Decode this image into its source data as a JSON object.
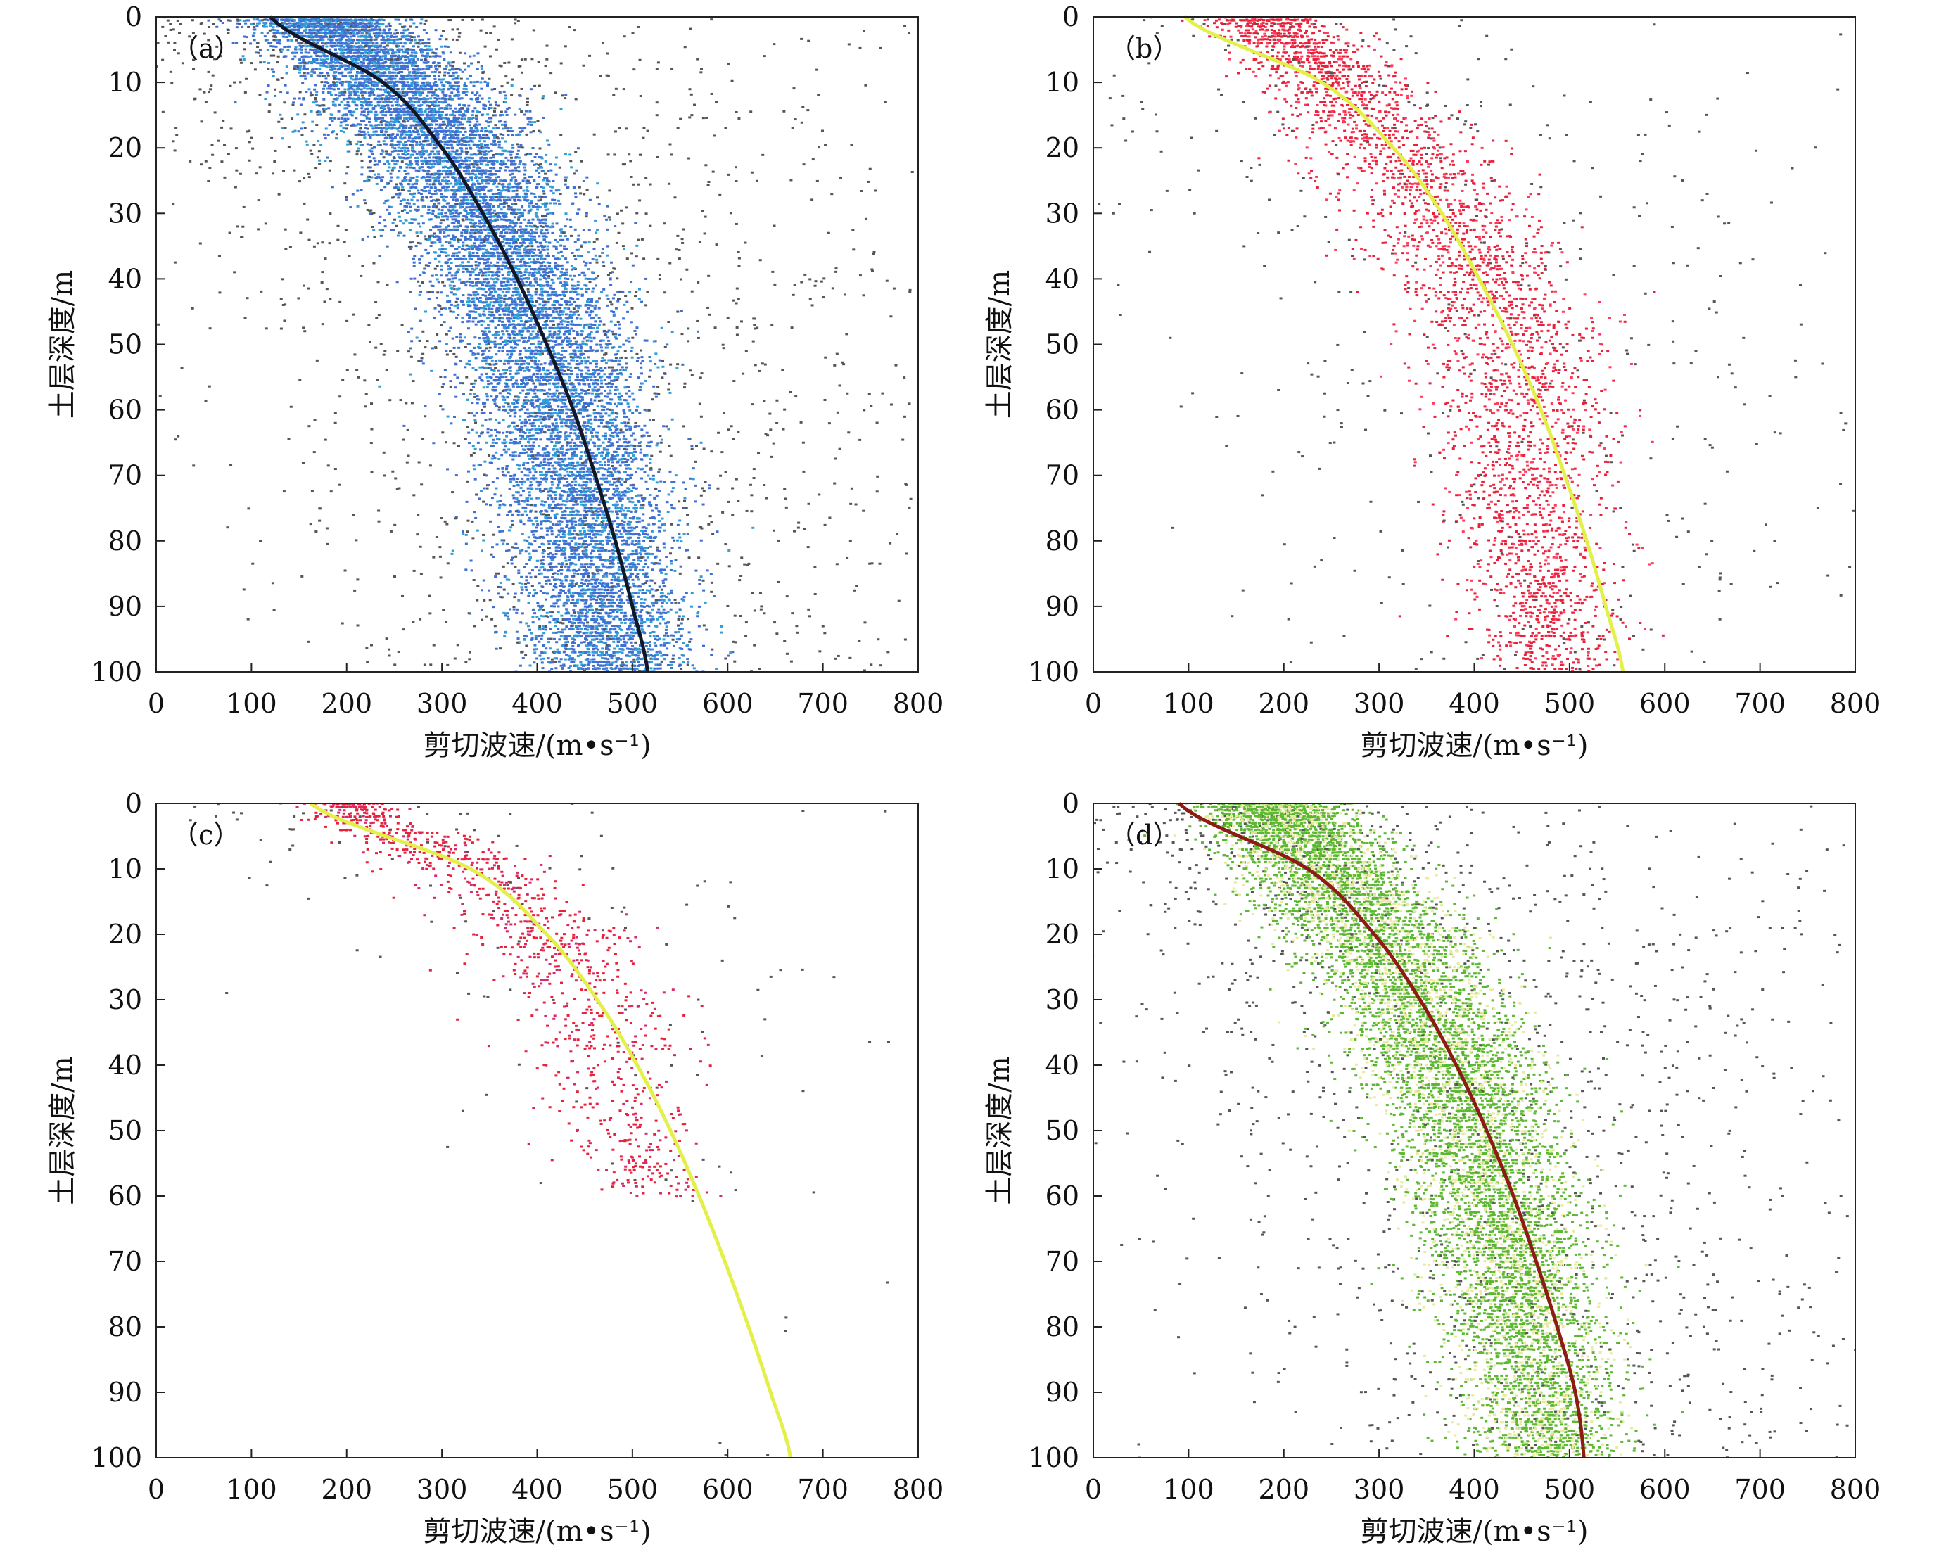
{
  "chart_data": [
    {
      "type": "scatter",
      "panel_label": "（a）",
      "xlabel": "剪切波速/(m•s⁻¹)",
      "ylabel": "土层深度/m",
      "xlim": [
        0,
        800
      ],
      "ylim": [
        0,
        100
      ],
      "y_inverted": true,
      "xticks": [
        "0",
        "100",
        "200",
        "300",
        "400",
        "500",
        "600",
        "700",
        "800"
      ],
      "yticks": [
        "0",
        "10",
        "20",
        "30",
        "40",
        "50",
        "60",
        "70",
        "80",
        "90",
        "100"
      ],
      "colors": {
        "main": "#3f6fd0",
        "accent": "#2f9fd8",
        "outlier": "#555555",
        "fit": "#101828"
      },
      "density_band": [
        {
          "depth": 0,
          "vs_low": 80,
          "vs_high": 260,
          "vs_median": 170
        },
        {
          "depth": 10,
          "vs_low": 140,
          "vs_high": 360,
          "vs_median": 250
        },
        {
          "depth": 20,
          "vs_low": 190,
          "vs_high": 430,
          "vs_median": 300
        },
        {
          "depth": 30,
          "vs_low": 240,
          "vs_high": 470,
          "vs_median": 345
        },
        {
          "depth": 40,
          "vs_low": 280,
          "vs_high": 500,
          "vs_median": 380
        },
        {
          "depth": 50,
          "vs_low": 300,
          "vs_high": 520,
          "vs_median": 405
        },
        {
          "depth": 60,
          "vs_low": 310,
          "vs_high": 540,
          "vs_median": 425
        },
        {
          "depth": 70,
          "vs_low": 330,
          "vs_high": 550,
          "vs_median": 445
        },
        {
          "depth": 80,
          "vs_low": 350,
          "vs_high": 560,
          "vs_median": 460
        },
        {
          "depth": 90,
          "vs_low": 360,
          "vs_high": 570,
          "vs_median": 470
        },
        {
          "depth": 100,
          "vs_low": 380,
          "vs_high": 580,
          "vs_median": 480
        }
      ],
      "point_count": 14000,
      "fit_curve": [
        {
          "vs": 120,
          "depth": 0
        },
        {
          "vs": 238,
          "depth": 10
        },
        {
          "vs": 300,
          "depth": 20
        },
        {
          "vs": 343,
          "depth": 30
        },
        {
          "vs": 379,
          "depth": 40
        },
        {
          "vs": 410,
          "depth": 50
        },
        {
          "vs": 438,
          "depth": 60
        },
        {
          "vs": 461,
          "depth": 70
        },
        {
          "vs": 482,
          "depth": 80
        },
        {
          "vs": 500,
          "depth": 90
        },
        {
          "vs": 516,
          "depth": 100
        }
      ]
    },
    {
      "type": "scatter",
      "panel_label": "（b）",
      "xlabel": "剪切波速/(m•s⁻¹)",
      "ylabel": "土层深度/m",
      "xlim": [
        0,
        800
      ],
      "ylim": [
        0,
        100
      ],
      "y_inverted": true,
      "xticks": [
        "0",
        "100",
        "200",
        "300",
        "400",
        "500",
        "600",
        "700",
        "800"
      ],
      "yticks": [
        "0",
        "10",
        "20",
        "30",
        "40",
        "50",
        "60",
        "70",
        "80",
        "90",
        "100"
      ],
      "colors": {
        "main": "#e8213a",
        "accent": "#ff3a5a",
        "outlier": "#555555",
        "fit": "#e4f04a"
      },
      "density_band": [
        {
          "depth": 0,
          "vs_low": 120,
          "vs_high": 250,
          "vs_median": 180
        },
        {
          "depth": 10,
          "vs_low": 160,
          "vs_high": 340,
          "vs_median": 255
        },
        {
          "depth": 20,
          "vs_low": 200,
          "vs_high": 420,
          "vs_median": 310
        },
        {
          "depth": 30,
          "vs_low": 250,
          "vs_high": 480,
          "vs_median": 365
        },
        {
          "depth": 40,
          "vs_low": 290,
          "vs_high": 530,
          "vs_median": 410
        },
        {
          "depth": 50,
          "vs_low": 310,
          "vs_high": 560,
          "vs_median": 440
        },
        {
          "depth": 60,
          "vs_low": 320,
          "vs_high": 560,
          "vs_median": 450
        },
        {
          "depth": 70,
          "vs_low": 340,
          "vs_high": 550,
          "vs_median": 455
        },
        {
          "depth": 80,
          "vs_low": 360,
          "vs_high": 560,
          "vs_median": 465
        },
        {
          "depth": 90,
          "vs_low": 380,
          "vs_high": 560,
          "vs_median": 475
        },
        {
          "depth": 100,
          "vs_low": 400,
          "vs_high": 560,
          "vs_median": 480
        }
      ],
      "point_count": 3800,
      "fit_curve": [
        {
          "vs": 96,
          "depth": 0
        },
        {
          "vs": 240,
          "depth": 10
        },
        {
          "vs": 315,
          "depth": 20
        },
        {
          "vs": 366,
          "depth": 30
        },
        {
          "vs": 405,
          "depth": 40
        },
        {
          "vs": 440,
          "depth": 50
        },
        {
          "vs": 470,
          "depth": 60
        },
        {
          "vs": 495,
          "depth": 70
        },
        {
          "vs": 518,
          "depth": 80
        },
        {
          "vs": 538,
          "depth": 90
        },
        {
          "vs": 556,
          "depth": 100
        }
      ]
    },
    {
      "type": "scatter",
      "panel_label": "（c）",
      "xlabel": "剪切波速/(m•s⁻¹)",
      "ylabel": "土层深度/m",
      "xlim": [
        0,
        800
      ],
      "ylim": [
        0,
        100
      ],
      "y_inverted": true,
      "xticks": [
        "0",
        "100",
        "200",
        "300",
        "400",
        "500",
        "600",
        "700",
        "800"
      ],
      "yticks": [
        "0",
        "10",
        "20",
        "30",
        "40",
        "50",
        "60",
        "70",
        "80",
        "90",
        "100"
      ],
      "colors": {
        "main": "#e8213a",
        "accent": "#d62a6e",
        "outlier": "#555555",
        "fit": "#e4f04a"
      },
      "density_band": [
        {
          "depth": 0,
          "vs_low": 130,
          "vs_high": 240,
          "vs_median": 190
        },
        {
          "depth": 10,
          "vs_low": 230,
          "vs_high": 420,
          "vs_median": 330
        },
        {
          "depth": 20,
          "vs_low": 330,
          "vs_high": 530,
          "vs_median": 420
        },
        {
          "depth": 30,
          "vs_low": 330,
          "vs_high": 560,
          "vs_median": 460
        },
        {
          "depth": 40,
          "vs_low": 350,
          "vs_high": 560,
          "vs_median": 480
        },
        {
          "depth": 50,
          "vs_low": 420,
          "vs_high": 580,
          "vs_median": 500
        },
        {
          "depth": 60,
          "vs_low": 430,
          "vs_high": 600,
          "vs_median": 520
        }
      ],
      "point_count": 1200,
      "fit_curve": [
        {
          "vs": 162,
          "depth": 0
        },
        {
          "vs": 330,
          "depth": 10
        },
        {
          "vs": 410,
          "depth": 20
        },
        {
          "vs": 463,
          "depth": 30
        },
        {
          "vs": 505,
          "depth": 40
        },
        {
          "vs": 540,
          "depth": 50
        },
        {
          "vs": 570,
          "depth": 60
        },
        {
          "vs": 597,
          "depth": 70
        },
        {
          "vs": 622,
          "depth": 80
        },
        {
          "vs": 645,
          "depth": 90
        },
        {
          "vs": 666,
          "depth": 100
        }
      ]
    },
    {
      "type": "scatter",
      "panel_label": "（d）",
      "xlabel": "剪切波速/(m•s⁻¹)",
      "ylabel": "土层深度/m",
      "xlim": [
        0,
        800
      ],
      "ylim": [
        0,
        100
      ],
      "y_inverted": true,
      "xticks": [
        "0",
        "100",
        "200",
        "300",
        "400",
        "500",
        "600",
        "700",
        "800"
      ],
      "yticks": [
        "0",
        "10",
        "20",
        "30",
        "40",
        "50",
        "60",
        "70",
        "80",
        "90",
        "100"
      ],
      "colors": {
        "main": "#5cb832",
        "accent": "#e9e9a0",
        "outlier": "#555555",
        "fit": "#8c1c14"
      },
      "density_band": [
        {
          "depth": 0,
          "vs_low": 80,
          "vs_high": 260,
          "vs_median": 180
        },
        {
          "depth": 10,
          "vs_low": 140,
          "vs_high": 350,
          "vs_median": 245
        },
        {
          "depth": 20,
          "vs_low": 180,
          "vs_high": 420,
          "vs_median": 295
        },
        {
          "depth": 30,
          "vs_low": 230,
          "vs_high": 460,
          "vs_median": 340
        },
        {
          "depth": 40,
          "vs_low": 270,
          "vs_high": 490,
          "vs_median": 375
        },
        {
          "depth": 50,
          "vs_low": 290,
          "vs_high": 510,
          "vs_median": 400
        },
        {
          "depth": 60,
          "vs_low": 310,
          "vs_high": 530,
          "vs_median": 420
        },
        {
          "depth": 70,
          "vs_low": 330,
          "vs_high": 550,
          "vs_median": 440
        },
        {
          "depth": 80,
          "vs_low": 350,
          "vs_high": 560,
          "vs_median": 455
        },
        {
          "depth": 90,
          "vs_low": 370,
          "vs_high": 570,
          "vs_median": 470
        },
        {
          "depth": 100,
          "vs_low": 380,
          "vs_high": 580,
          "vs_median": 480
        }
      ],
      "point_count": 11000,
      "fit_curve": [
        {
          "vs": 90,
          "depth": 0
        },
        {
          "vs": 225,
          "depth": 10
        },
        {
          "vs": 295,
          "depth": 20
        },
        {
          "vs": 343,
          "depth": 30
        },
        {
          "vs": 381,
          "depth": 40
        },
        {
          "vs": 413,
          "depth": 50
        },
        {
          "vs": 441,
          "depth": 60
        },
        {
          "vs": 465,
          "depth": 70
        },
        {
          "vs": 487,
          "depth": 80
        },
        {
          "vs": 506,
          "depth": 90
        },
        {
          "vs": 515,
          "depth": 100
        }
      ]
    }
  ]
}
